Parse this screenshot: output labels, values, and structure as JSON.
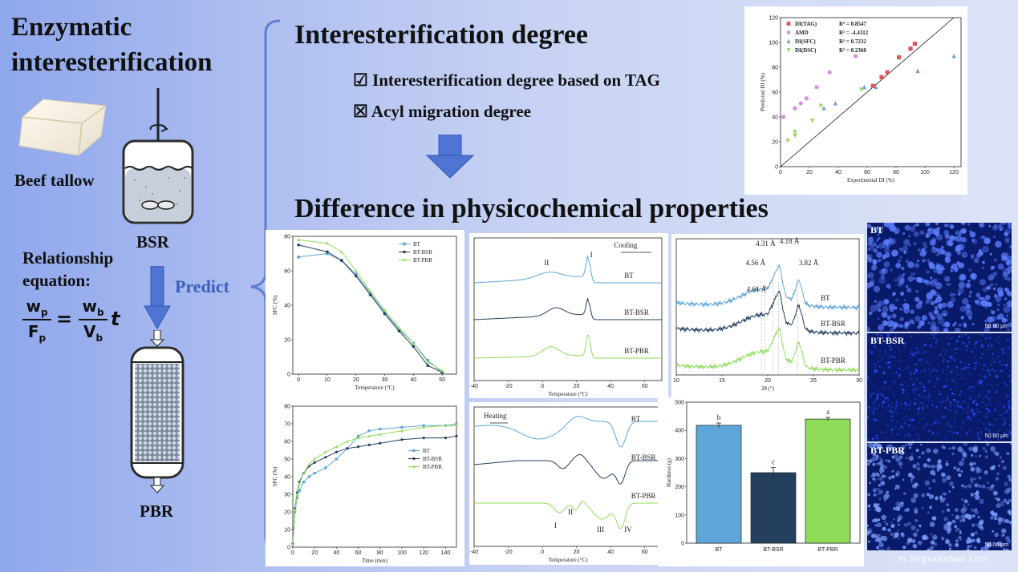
{
  "left": {
    "title_line1": "Enzymatic",
    "title_line2": "interesterification",
    "beef_tallow": "Beef tallow",
    "bsr": "BSR",
    "relationship_line1": "Relationship",
    "relationship_line2": "equation:",
    "eq_wp": "w",
    "eq_wp_sub": "p",
    "eq_fp": "F",
    "eq_fp_sub": "p",
    "eq_eq": "=",
    "eq_wb": "w",
    "eq_wb_sub": "b",
    "eq_vb": "V",
    "eq_vb_sub": "b",
    "eq_t": "t",
    "pbr": "PBR",
    "predict": "Predict"
  },
  "top": {
    "heading": "Interesterification degree",
    "item1": "☑ Interesterification degree based on TAG",
    "item2": "☒ Acyl migration degree"
  },
  "middle": {
    "heading": "Difference in physicochemical properties"
  },
  "micrographs": [
    {
      "label": "BT",
      "scale": "50.00 μm",
      "color": "#5d80ff"
    },
    {
      "label": "BT-BSR",
      "scale": "50.00 μm",
      "color": "#2c48ff"
    },
    {
      "label": "BT-PBR",
      "scale": "50.00 μm",
      "color": "#7a9dff"
    }
  ],
  "watermark": "m.lingxuanbao.com",
  "chart_data": [
    {
      "type": "scatter",
      "xlabel": "Experimental DI (%)",
      "ylabel": "Predicted DI (%)",
      "xlim": [
        0,
        125
      ],
      "ylim": [
        0,
        120
      ],
      "xticks": [
        0,
        20,
        40,
        60,
        80,
        100,
        120
      ],
      "yticks": [
        0,
        20,
        40,
        60,
        80,
        100,
        120
      ],
      "legend": "top-left",
      "series": [
        {
          "name": "DI(TAG)",
          "r2": "R² = 0.8547",
          "color": "#e0575a",
          "marker": "square",
          "points": [
            [
              64,
              65
            ],
            [
              70,
              72
            ],
            [
              74,
              76
            ],
            [
              82,
              88
            ],
            [
              90,
              95
            ],
            [
              93,
              99
            ]
          ]
        },
        {
          "name": "AMD",
          "r2": "R² = -4.4312",
          "color": "#d690dd",
          "marker": "circle",
          "points": [
            [
              2,
              40
            ],
            [
              10,
              47
            ],
            [
              14,
              51
            ],
            [
              18,
              55
            ],
            [
              25,
              64
            ],
            [
              34,
              76
            ],
            [
              52,
              89
            ]
          ]
        },
        {
          "name": "DI(SFC)",
          "r2": "R² = 0.7232",
          "color": "#6a9fdc",
          "marker": "triangle",
          "points": [
            [
              30,
              47
            ],
            [
              38,
              51
            ],
            [
              58,
              64
            ],
            [
              66,
              64
            ],
            [
              95,
              77
            ],
            [
              120,
              89
            ]
          ]
        },
        {
          "name": "DI(DSC)",
          "r2": "R² = 0.2360",
          "color": "#8fdc5a",
          "marker": "triangle-down",
          "points": [
            [
              5,
              21
            ],
            [
              10,
              25
            ],
            [
              10,
              28
            ],
            [
              22,
              37
            ],
            [
              28,
              49
            ],
            [
              56,
              62
            ]
          ]
        }
      ]
    },
    {
      "type": "line",
      "xlabel": "Temperature (°C)",
      "ylabel": "SFC (%)",
      "xlim": [
        -2,
        55
      ],
      "ylim": [
        0,
        80
      ],
      "xticks": [
        0,
        10,
        20,
        30,
        40,
        50
      ],
      "yticks": [
        0,
        20,
        40,
        60,
        80
      ],
      "legend": "top-right",
      "series": [
        {
          "name": "BT",
          "color": "#5ea5d8",
          "x": [
            0,
            10,
            15,
            20,
            25,
            30,
            35,
            40,
            45,
            50
          ],
          "values": [
            68,
            70,
            66,
            58,
            47,
            36,
            26,
            18,
            8,
            1
          ]
        },
        {
          "name": "BT-BSR",
          "color": "#24405e",
          "x": [
            0,
            10,
            15,
            20,
            25,
            30,
            35,
            40,
            45,
            50
          ],
          "values": [
            75,
            71,
            66,
            57,
            46,
            35,
            25,
            16,
            5,
            1
          ]
        },
        {
          "name": "BT-PBR",
          "color": "#8fdc5a",
          "x": [
            0,
            10,
            15,
            20,
            25,
            30,
            35,
            40,
            45,
            50
          ],
          "values": [
            78,
            76,
            71,
            60,
            48,
            37,
            27,
            18,
            7,
            2
          ]
        }
      ]
    },
    {
      "type": "line",
      "xlabel": "Temperature (°C)",
      "ylabel": "endo-Heat Flow (W/g)-exo",
      "xticks": [
        -40,
        -20,
        0,
        20,
        40,
        60
      ],
      "xlim": [
        -40,
        70
      ],
      "annotations": [
        "Cooling",
        "I",
        "II"
      ],
      "series": [
        {
          "name": "BT",
          "color": "#5ea5d8"
        },
        {
          "name": "BT-BSR",
          "color": "#24405e"
        },
        {
          "name": "BT-PBR",
          "color": "#8fdc5a"
        }
      ]
    },
    {
      "type": "line",
      "xlabel": "2θ (°)",
      "ylabel": "Intensity (Counts)",
      "xticks": [
        10,
        15,
        20,
        25,
        30
      ],
      "xlim": [
        10,
        30
      ],
      "annotations": [
        "4.31 Å",
        "4.18 Å",
        "4.56 Å",
        "3.82 Å",
        "4.61 Å"
      ],
      "series": [
        {
          "name": "BT",
          "color": "#5ea5d8"
        },
        {
          "name": "BT-BSR",
          "color": "#24405e"
        },
        {
          "name": "BT-PBR",
          "color": "#8fdc5a"
        }
      ]
    },
    {
      "type": "line",
      "xlabel": "Time (min)",
      "ylabel": "SFC (%)",
      "xlim": [
        0,
        150
      ],
      "ylim": [
        0,
        80
      ],
      "xticks": [
        0,
        20,
        40,
        60,
        80,
        100,
        120,
        140
      ],
      "yticks": [
        0,
        10,
        20,
        30,
        40,
        50,
        60,
        70,
        80
      ],
      "legend": "right",
      "series": [
        {
          "name": "BT",
          "color": "#5ea5d8",
          "x": [
            0,
            2,
            4,
            6,
            10,
            15,
            20,
            30,
            40,
            50,
            60,
            70,
            80,
            100,
            120,
            140,
            150
          ],
          "values": [
            2,
            20,
            28,
            32,
            37,
            40,
            42,
            45,
            50,
            56,
            63,
            66,
            67,
            68,
            69,
            69,
            70
          ]
        },
        {
          "name": "BT-BSR",
          "color": "#24405e",
          "x": [
            0,
            2,
            4,
            6,
            10,
            15,
            20,
            30,
            40,
            50,
            60,
            70,
            80,
            100,
            120,
            140,
            150
          ],
          "values": [
            2,
            22,
            31,
            37,
            42,
            46,
            48,
            51,
            54,
            56,
            57,
            58,
            59,
            61,
            62,
            62,
            63
          ]
        },
        {
          "name": "BT-PBR",
          "color": "#8fdc5a",
          "x": [
            0,
            2,
            4,
            6,
            10,
            15,
            20,
            30,
            40,
            50,
            60,
            70,
            80,
            100,
            120,
            140,
            150
          ],
          "values": [
            2,
            21,
            30,
            36,
            42,
            47,
            50,
            54,
            57,
            60,
            62,
            63,
            64,
            66,
            68,
            69,
            69
          ]
        }
      ]
    },
    {
      "type": "line",
      "xlabel": "Temperature (°C)",
      "ylabel": "endo-Heat Flow (W/g)-exo",
      "xticks": [
        -40,
        -20,
        0,
        20,
        40,
        60
      ],
      "xlim": [
        -40,
        70
      ],
      "annotations": [
        "Heating",
        "I",
        "II",
        "III",
        "IV"
      ],
      "series": [
        {
          "name": "BT",
          "color": "#5ea5d8"
        },
        {
          "name": "BT-BSR",
          "color": "#24405e"
        },
        {
          "name": "BT-PBR",
          "color": "#8fdc5a"
        }
      ]
    },
    {
      "type": "bar",
      "ylabel": "Hardness (g)",
      "categories": [
        "BT",
        "BT-BSR",
        "BT-PBR"
      ],
      "values": [
        418,
        250,
        440
      ],
      "errors": [
        8,
        18,
        6
      ],
      "letters": [
        "b",
        "c",
        "a"
      ],
      "colors": [
        "#5ea5d8",
        "#24405e",
        "#8fdc5a"
      ],
      "ylim": [
        0,
        500
      ],
      "yticks": [
        0,
        100,
        200,
        300,
        400,
        500
      ]
    }
  ]
}
